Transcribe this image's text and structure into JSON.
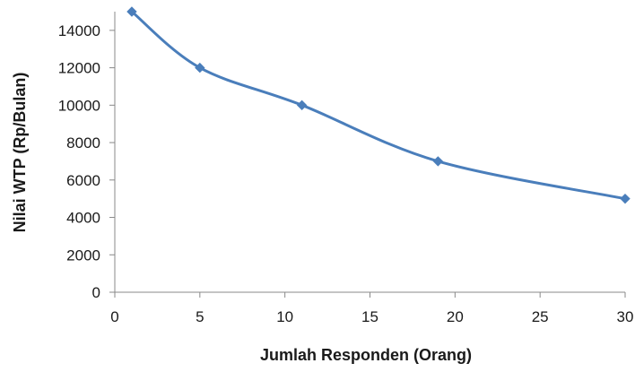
{
  "chart_data": {
    "type": "line",
    "x": [
      1,
      5,
      11,
      19,
      30
    ],
    "series": [
      {
        "values": [
          15000,
          12000,
          10000,
          7000,
          5000
        ],
        "color": "#4a7ebb",
        "marker": "diamond",
        "smooth": true
      }
    ],
    "title": "",
    "xlabel": "Jumlah Responden  (Orang)",
    "ylabel": "Nilai WTP (Rp/Bulan)",
    "xlim": [
      0,
      30
    ],
    "ylim": [
      0,
      15000
    ],
    "xticks": [
      0,
      5,
      10,
      15,
      20,
      25,
      30
    ],
    "yticks": [
      0,
      2000,
      4000,
      6000,
      8000,
      10000,
      12000,
      14000
    ],
    "grid": false,
    "legend": "none"
  }
}
